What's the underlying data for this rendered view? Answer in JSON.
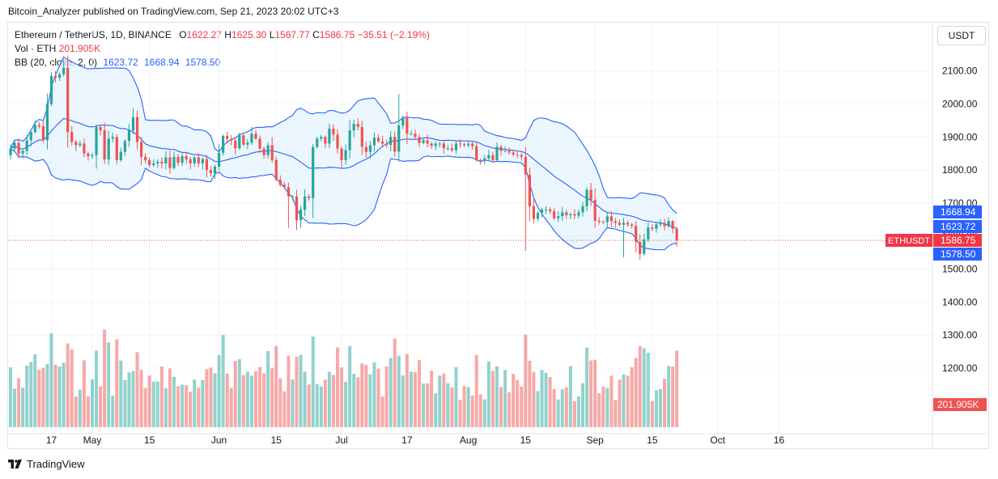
{
  "header": {
    "publisher": "Bitcoin_Analyzer published on TradingView.com, Sep 21, 2023 20:02 UTC+3"
  },
  "legend": {
    "symbol": "Ethereum / TetherUS, 1D, BINANCE",
    "o_label": "O",
    "o_val": "1622.27",
    "h_label": "H",
    "h_val": "1625.30",
    "l_label": "L",
    "l_val": "1567.77",
    "c_label": "C",
    "c_val": "1586.75",
    "change": "−35.51 (−2.19%)",
    "vol_label": "Vol · ETH",
    "vol_val": "201.905K",
    "bb_label": "BB (20, close, 2, 0)",
    "bb_basis": "1623.72",
    "bb_upper": "1668.94",
    "bb_lower": "1578.50"
  },
  "currency_button": "USDT",
  "footer": {
    "brand": "TradingView"
  },
  "colors": {
    "up": "#26a69a",
    "down": "#ef5350",
    "band_line": "#2962ff",
    "band_fill": "#e3f2fd",
    "badge_blue": "#2962ff",
    "badge_red": "#f23645"
  },
  "chart_data": {
    "type": "candlestick",
    "symbol": "ETHUSDT",
    "ylim": [
      1450,
      2180
    ],
    "y_ticks": [
      1500,
      1600,
      1700,
      1800,
      1900,
      2000,
      2100,
      1200,
      1300,
      1400
    ],
    "y_tick_labels": [
      "1500.00",
      "1600.00",
      "1700.00",
      "1800.00",
      "1900.00",
      "2000.00",
      "2100.00",
      "1200.00",
      "1300.00",
      "1400.00"
    ],
    "x_ticks": [
      {
        "label": "17",
        "index": 10
      },
      {
        "label": "May",
        "index": 20
      },
      {
        "label": "15",
        "index": 34
      },
      {
        "label": "Jun",
        "index": 51
      },
      {
        "label": "15",
        "index": 65
      },
      {
        "label": "Jul",
        "index": 81
      },
      {
        "label": "17",
        "index": 97
      },
      {
        "label": "Aug",
        "index": 112
      },
      {
        "label": "15",
        "index": 126
      },
      {
        "label": "Sep",
        "index": 143
      },
      {
        "label": "15",
        "index": 157
      },
      {
        "label": "Oct",
        "index": 173
      },
      {
        "label": "16",
        "index": 188
      }
    ],
    "closes": [
      1865,
      1882,
      1850,
      1858,
      1890,
      1915,
      1936,
      1932,
      1890,
      2000,
      2085,
      2080,
      2090,
      2110,
      1915,
      1885,
      1875,
      1880,
      1850,
      1842,
      1845,
      1930,
      1920,
      1832,
      1895,
      1900,
      1830,
      1855,
      1888,
      1920,
      1960,
      1885,
      1840,
      1830,
      1815,
      1820,
      1825,
      1820,
      1838,
      1806,
      1840,
      1822,
      1842,
      1832,
      1820,
      1838,
      1820,
      1833,
      1800,
      1790,
      1810,
      1852,
      1903,
      1894,
      1889,
      1866,
      1905,
      1877,
      1883,
      1910,
      1895,
      1865,
      1845,
      1875,
      1830,
      1770,
      1755,
      1748,
      1720,
      1720,
      1648,
      1680,
      1720,
      1715,
      1870,
      1895,
      1900,
      1880,
      1925,
      1907,
      1865,
      1830,
      1860,
      1920,
      1940,
      1930,
      1870,
      1855,
      1875,
      1898,
      1887,
      1880,
      1876,
      1900,
      1856,
      1935,
      1960,
      1910,
      1910,
      1900,
      1882,
      1890,
      1880,
      1873,
      1880,
      1880,
      1866,
      1866,
      1860,
      1880,
      1878,
      1875,
      1880,
      1872,
      1830,
      1828,
      1835,
      1845,
      1830,
      1870,
      1858,
      1858,
      1853,
      1847,
      1845,
      1840,
      1786,
      1690,
      1652,
      1670,
      1680,
      1680,
      1675,
      1654,
      1660,
      1672,
      1663,
      1666,
      1662,
      1672,
      1690,
      1740,
      1710,
      1646,
      1643,
      1642,
      1660,
      1645,
      1640,
      1634,
      1640,
      1635,
      1631,
      1582,
      1546,
      1590,
      1626,
      1622,
      1635,
      1640,
      1630,
      1645,
      1622,
      1587
    ],
    "basis_desc": "20-period SMA of close",
    "volumes_desc": "daily volume bars, last 201.905K",
    "last": {
      "open": 1622.27,
      "high": 1625.3,
      "low": 1567.77,
      "close": 1586.75,
      "change": -35.51,
      "change_pct": -2.19,
      "volume": "201.905K"
    },
    "bb": {
      "length": 20,
      "source": "close",
      "mult": 2,
      "offset": 0,
      "basis": 1623.72,
      "upper": 1668.94,
      "lower": 1578.5
    },
    "price_badges": [
      {
        "label": "1668.94",
        "value": 1668.94,
        "kind": "upper"
      },
      {
        "label": "1623.72",
        "value": 1623.72,
        "kind": "basis"
      },
      {
        "label": "1586.75",
        "value": 1586.75,
        "kind": "last"
      },
      {
        "label": "1578.50",
        "value": 1578.5,
        "kind": "lower"
      }
    ],
    "symbol_badge": "ETHUSDT",
    "volume_badge": "201.905K"
  }
}
